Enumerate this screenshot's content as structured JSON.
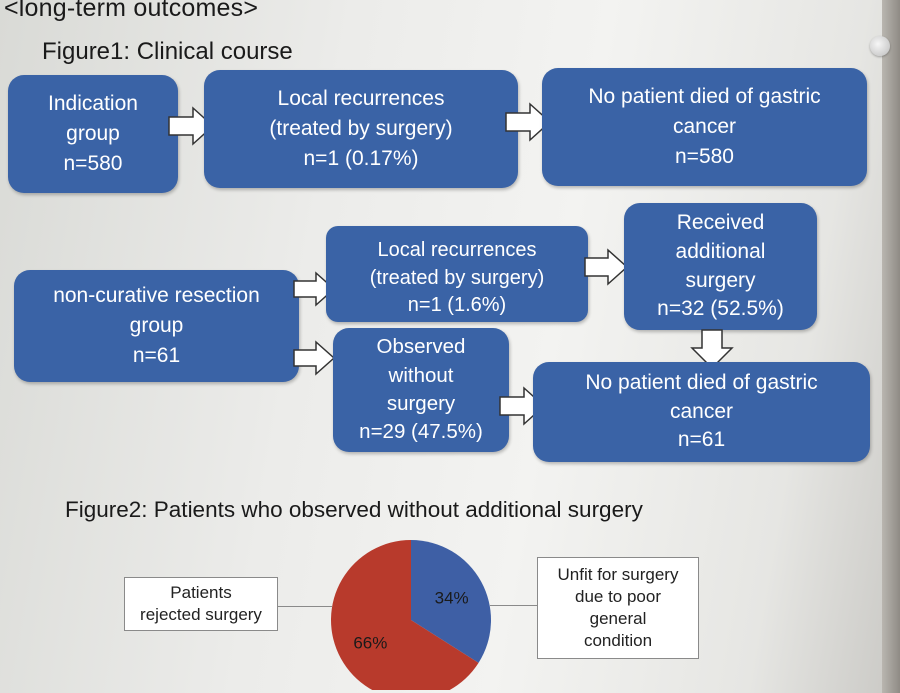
{
  "header": {
    "title": "<long-term outcomes>",
    "figure1_title": "Figure1: Clinical course",
    "figure2_title": "Figure2: Patients who observed without additional surgery"
  },
  "flow": {
    "indication": {
      "line1": "Indication",
      "line2": "group",
      "n": "n=580"
    },
    "local_rec_1": {
      "line1": "Local recurrences",
      "line2": "(treated by surgery)",
      "n": "n=1 (0.17%)"
    },
    "no_death_1": {
      "line1": "No patient died of gastric",
      "line2": "cancer",
      "n": "n=580"
    },
    "noncurative": {
      "line1": "non-curative resection",
      "line2": "group",
      "n": "n=61"
    },
    "local_rec_2": {
      "line1": "Local recurrences",
      "line2": "(treated by surgery)",
      "n": "n=1 (1.6%)"
    },
    "additional": {
      "line1": "Received",
      "line2": "additional",
      "line3": "surgery",
      "n": "n=32 (52.5%)"
    },
    "observed": {
      "line1": "Observed",
      "line2": "without",
      "line3": "surgery",
      "n": "n=29 (47.5%)"
    },
    "no_death_2": {
      "line1": "No patient died of gastric",
      "line2": "cancer",
      "n": "n=61"
    }
  },
  "colors": {
    "box_blue": "#3a63a6",
    "pie_red": "#b83a2c",
    "pie_blue": "#3e5fa5"
  },
  "chart_data": {
    "type": "pie",
    "title": "Figure2: Patients who observed without additional surgery",
    "slices": [
      {
        "label": "Unfit for surgery due to poor general condition",
        "value": 34,
        "text": "34%"
      },
      {
        "label": "Patients rejected surgery",
        "value": 66,
        "text": "66%"
      }
    ]
  },
  "pie_labels": {
    "left_line1": "Patients",
    "left_line2": "rejected surgery",
    "right_line1": "Unfit for surgery",
    "right_line2": "due to poor",
    "right_line3": "general",
    "right_line4": "condition"
  }
}
